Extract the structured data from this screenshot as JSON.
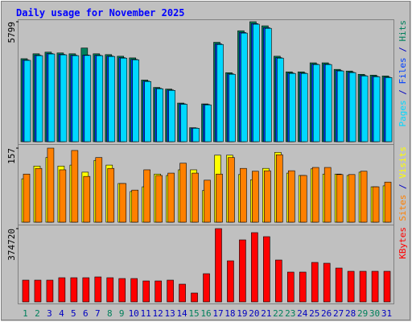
{
  "chart_data": [
    {
      "type": "bar",
      "title": "Daily usage for November 2025",
      "ylim": [
        0,
        5799
      ],
      "yticks": [
        5799
      ],
      "legend_separator": " / ",
      "series": [
        {
          "name": "Hits",
          "color": "#00805c",
          "values": [
            4012,
            4250,
            4329,
            4290,
            4250,
            4528,
            4250,
            4210,
            4131,
            4051,
            2979,
            2622,
            2542,
            1867,
            675,
            1827,
            4806,
            3336,
            5362,
            5799,
            5601,
            4131,
            3376,
            3376,
            3813,
            3813,
            3495,
            3416,
            3257,
            3217,
            3178
          ]
        },
        {
          "name": "Files",
          "color": "#0040ff",
          "values": [
            3950,
            4180,
            4260,
            4220,
            4180,
            4190,
            4180,
            4140,
            4060,
            3980,
            2930,
            2580,
            2500,
            1830,
            660,
            1800,
            4730,
            3280,
            5280,
            5710,
            5510,
            4060,
            3320,
            3320,
            3750,
            3750,
            3440,
            3360,
            3200,
            3160,
            3120
          ]
        },
        {
          "name": "Pages",
          "color": "#00d8ff",
          "values": [
            3930,
            4160,
            4240,
            4200,
            4160,
            4170,
            4160,
            4120,
            4040,
            3960,
            2910,
            2560,
            2480,
            1810,
            650,
            1780,
            4700,
            3260,
            5250,
            5680,
            5480,
            4040,
            3300,
            3300,
            3730,
            3730,
            3420,
            3340,
            3180,
            3140,
            3100
          ]
        }
      ]
    },
    {
      "type": "bar",
      "ylim": [
        0,
        157
      ],
      "yticks": [
        157
      ],
      "legend_separator": " / ",
      "series": [
        {
          "name": "Visits",
          "color": "#ffff00",
          "values": [
            92,
            119,
            137,
            119,
            121,
            106,
            131,
            121,
            82,
            65,
            75,
            102,
            99,
            111,
            111,
            67,
            142,
            142,
            101,
            90,
            114,
            148,
            104,
            99,
            113,
            102,
            102,
            99,
            106,
            75,
            77
          ]
        },
        {
          "name": "Sites",
          "color": "#ff8000",
          "values": [
            102,
            114,
            157,
            111,
            152,
            97,
            137,
            114,
            82,
            68,
            111,
            99,
            104,
            125,
            104,
            89,
            102,
            137,
            114,
            108,
            109,
            143,
            109,
            99,
            116,
            116,
            101,
            101,
            108,
            75,
            85
          ]
        }
      ]
    },
    {
      "type": "bar",
      "ylim": [
        0,
        374720
      ],
      "yticks": [
        374720
      ],
      "categories": [
        "1",
        "2",
        "3",
        "4",
        "5",
        "6",
        "7",
        "8",
        "9",
        "10",
        "11",
        "12",
        "13",
        "14",
        "15",
        "16",
        "17",
        "18",
        "19",
        "20",
        "21",
        "22",
        "23",
        "24",
        "25",
        "26",
        "27",
        "28",
        "29",
        "30",
        "31"
      ],
      "category_colors": [
        "#00805c",
        "#00805c",
        "#0000c0",
        "#0000c0",
        "#0000c0",
        "#0000c0",
        "#0000c0",
        "#00805c",
        "#00805c",
        "#0000c0",
        "#0000c0",
        "#0000c0",
        "#0000c0",
        "#0000c0",
        "#00805c",
        "#00805c",
        "#0000c0",
        "#0000c0",
        "#0000c0",
        "#0000c0",
        "#0000c0",
        "#00805c",
        "#00805c",
        "#0000c0",
        "#0000c0",
        "#0000c0",
        "#0000c0",
        "#0000c0",
        "#00805c",
        "#00805c",
        "#0000c0"
      ],
      "series": [
        {
          "name": "KBytes",
          "color": "#ff0000",
          "values": [
            111186,
            111186,
            111186,
            123540,
            123540,
            123540,
            127658,
            123540,
            119422,
            119422,
            107068,
            107068,
            111186,
            90596,
            45298,
            144130,
            374720,
            210018,
            317086,
            354148,
            333558,
            214136,
            152366,
            152366,
            201782,
            197664,
            172956,
            156484,
            156484,
            156484,
            156484
          ]
        }
      ]
    }
  ]
}
